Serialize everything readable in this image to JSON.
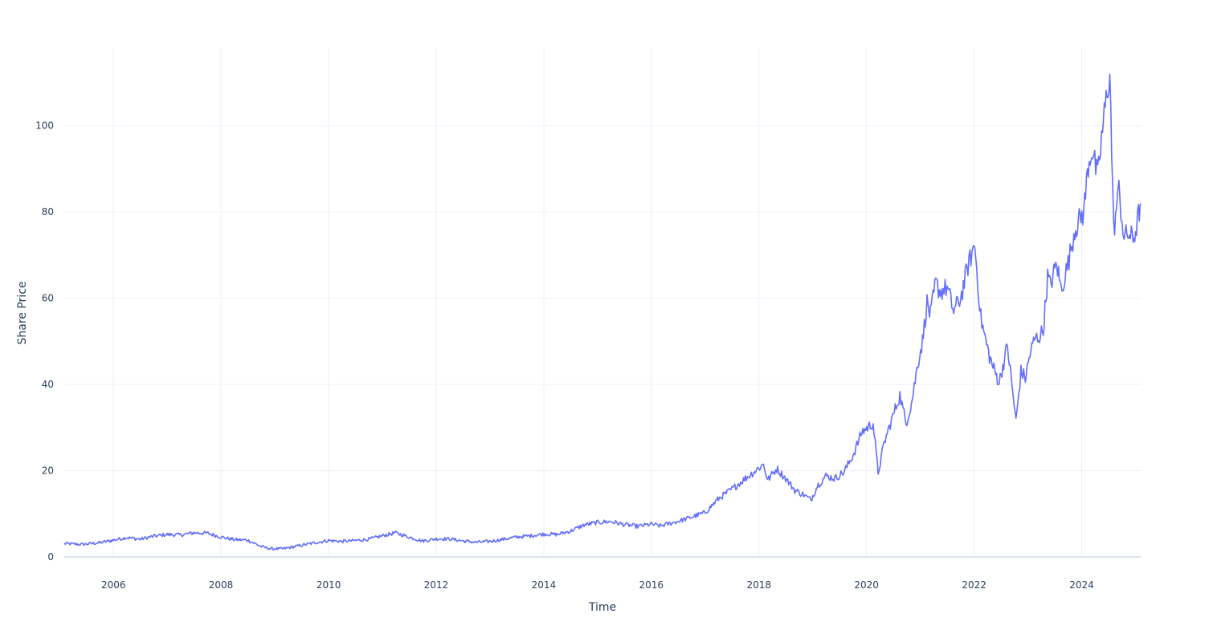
{
  "chart_data": {
    "type": "line",
    "title": "",
    "xlabel": "Time",
    "ylabel": "Share Price",
    "xlim": [
      "2005-02-01",
      "2025-02-05"
    ],
    "ylim": [
      0,
      118
    ],
    "grid": true,
    "legend": "none",
    "colors": {
      "line": "#636efa",
      "grid": "#ebf0f8",
      "zeroline": "#dce4ef",
      "text": "#2a3f5f",
      "background": "#ffffff"
    },
    "x_ticks": [
      "2006",
      "2008",
      "2010",
      "2012",
      "2014",
      "2016",
      "2018",
      "2020",
      "2022",
      "2024"
    ],
    "y_ticks": [
      "0",
      "20",
      "40",
      "60",
      "80",
      "100"
    ],
    "series": [
      {
        "x": [
          "2005-02-01",
          "2005-06-01",
          "2005-10-01",
          "2006-01-01",
          "2006-04-01",
          "2006-07-01",
          "2006-10-01",
          "2007-01-01",
          "2007-04-01",
          "2007-07-01",
          "2007-10-01",
          "2008-01-01",
          "2008-04-01",
          "2008-07-01",
          "2008-10-01",
          "2008-12-01",
          "2009-03-01",
          "2009-07-01",
          "2009-10-01",
          "2010-01-01",
          "2010-04-01",
          "2010-07-01",
          "2010-10-01",
          "2011-01-01",
          "2011-04-01",
          "2011-07-01",
          "2011-10-01",
          "2012-01-01",
          "2012-04-01",
          "2012-07-01",
          "2012-10-01",
          "2013-01-01",
          "2013-04-01",
          "2013-07-01",
          "2013-10-01",
          "2014-01-01",
          "2014-04-01",
          "2014-07-01",
          "2014-10-01",
          "2015-01-01",
          "2015-04-01",
          "2015-07-01",
          "2015-10-01",
          "2016-01-01",
          "2016-03-01",
          "2016-06-01",
          "2016-09-01",
          "2017-01-01",
          "2017-04-01",
          "2017-07-01",
          "2017-10-01",
          "2017-12-01",
          "2018-02-01",
          "2018-03-01",
          "2018-05-01",
          "2018-07-01",
          "2018-09-01",
          "2018-11-01",
          "2018-12-20",
          "2019-02-01",
          "2019-04-01",
          "2019-06-01",
          "2019-08-01",
          "2019-10-01",
          "2019-12-01",
          "2020-02-15",
          "2020-03-20",
          "2020-05-01",
          "2020-07-01",
          "2020-08-15",
          "2020-09-25",
          "2020-11-01",
          "2020-12-15",
          "2021-01-15",
          "2021-02-15",
          "2021-03-10",
          "2021-04-15",
          "2021-05-15",
          "2021-07-01",
          "2021-08-15",
          "2021-10-01",
          "2021-11-20",
          "2022-01-05",
          "2022-02-15",
          "2022-03-15",
          "2022-04-15",
          "2022-05-15",
          "2022-06-20",
          "2022-08-15",
          "2022-10-12",
          "2022-11-15",
          "2022-12-15",
          "2023-01-15",
          "2023-02-15",
          "2023-03-15",
          "2023-04-15",
          "2023-05-15",
          "2023-06-01",
          "2023-07-15",
          "2023-08-15",
          "2023-10-01",
          "2023-11-15",
          "2023-12-15",
          "2024-01-15",
          "2024-02-15",
          "2024-03-10",
          "2024-04-19",
          "2024-05-15",
          "2024-06-15",
          "2024-07-10",
          "2024-08-05",
          "2024-08-25",
          "2024-09-10",
          "2024-10-15",
          "2024-11-15",
          "2024-12-15",
          "2025-01-07",
          "2025-01-27",
          "2025-02-05"
        ],
        "y": [
          3.1,
          2.9,
          3.3,
          3.9,
          4.5,
          4.1,
          4.8,
          5.2,
          5.1,
          5.6,
          5.5,
          4.6,
          4.0,
          3.9,
          2.4,
          1.9,
          1.9,
          2.7,
          3.3,
          3.8,
          3.6,
          3.8,
          4.1,
          4.9,
          5.6,
          4.6,
          3.7,
          4.2,
          4.2,
          3.7,
          3.4,
          3.6,
          4.1,
          4.6,
          4.9,
          5.3,
          5.2,
          6.0,
          7.4,
          8.0,
          8.2,
          7.5,
          7.1,
          7.6,
          7.2,
          8.0,
          8.9,
          10.3,
          13.5,
          15.7,
          18.2,
          19.8,
          21.5,
          17.8,
          20.5,
          18.2,
          15.5,
          14.4,
          13.2,
          16.5,
          18.8,
          18.2,
          19.7,
          23.5,
          29.0,
          31.0,
          19.5,
          26.5,
          33.0,
          37.5,
          31.0,
          35.5,
          45.0,
          50.0,
          59.0,
          56.0,
          63.5,
          61.5,
          62.5,
          57.0,
          60.0,
          67.5,
          72.5,
          55.5,
          51.0,
          46.5,
          43.5,
          40.5,
          49.0,
          31.5,
          43.0,
          41.5,
          47.0,
          50.5,
          51.0,
          52.5,
          65.0,
          63.0,
          68.0,
          62.0,
          68.0,
          76.0,
          78.0,
          80.0,
          91.0,
          94.5,
          88.0,
          97.0,
          106.0,
          112.5,
          75.5,
          81.0,
          85.0,
          74.0,
          75.0,
          73.5,
          76.5,
          80.5,
          82.0
        ]
      }
    ]
  }
}
